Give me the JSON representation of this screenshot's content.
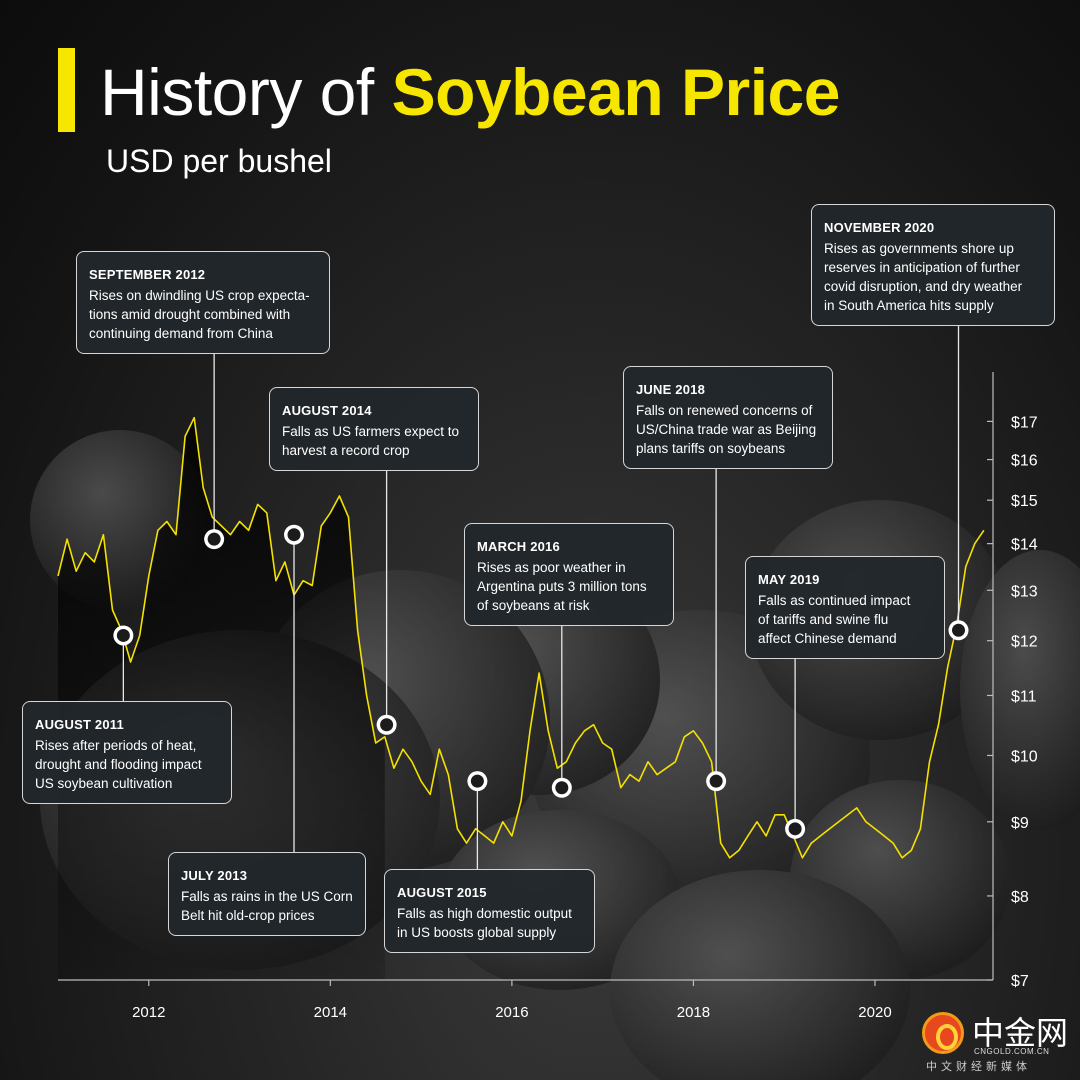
{
  "title": {
    "light": "History of",
    "bold": "Soybean Price"
  },
  "subtitle": "USD per bushel",
  "colors": {
    "accent": "#f7e600",
    "line": "#f5e100",
    "text": "#ffffff",
    "callout_bg": "#21272b",
    "callout_border": "#d6d6d6"
  },
  "chart_data": {
    "type": "line",
    "title": "History of Soybean Price",
    "subtitle": "USD per bushel",
    "xlabel": "",
    "ylabel": "",
    "y_scale": "log",
    "ylim": [
      7,
      17.7
    ],
    "xlim": [
      2011.0,
      2021.3
    ],
    "y_ticks": [
      7,
      8,
      9,
      10,
      11,
      12,
      13,
      14,
      15,
      16,
      17
    ],
    "y_tick_labels": [
      "$7",
      "$8",
      "$9",
      "$10",
      "$11",
      "$12",
      "$13",
      "$14",
      "$15",
      "$16",
      "$17"
    ],
    "x_ticks": [
      2012,
      2014,
      2016,
      2018,
      2020
    ],
    "x_tick_labels": [
      "2012",
      "2014",
      "2016",
      "2018",
      "2020"
    ],
    "grid": false,
    "legend": "none",
    "series": [
      {
        "name": "",
        "x": [
          2011.0,
          2011.1,
          2011.2,
          2011.3,
          2011.4,
          2011.5,
          2011.6,
          2011.7,
          2011.8,
          2011.9,
          2012.0,
          2012.1,
          2012.2,
          2012.3,
          2012.4,
          2012.5,
          2012.6,
          2012.7,
          2012.8,
          2012.9,
          2013.0,
          2013.1,
          2013.2,
          2013.3,
          2013.4,
          2013.5,
          2013.6,
          2013.7,
          2013.8,
          2013.9,
          2014.0,
          2014.1,
          2014.2,
          2014.3,
          2014.4,
          2014.5,
          2014.6,
          2014.7,
          2014.8,
          2014.9,
          2015.0,
          2015.1,
          2015.2,
          2015.3,
          2015.4,
          2015.5,
          2015.6,
          2015.7,
          2015.8,
          2015.9,
          2016.0,
          2016.1,
          2016.2,
          2016.3,
          2016.4,
          2016.5,
          2016.6,
          2016.7,
          2016.8,
          2016.9,
          2017.0,
          2017.1,
          2017.2,
          2017.3,
          2017.4,
          2017.5,
          2017.6,
          2017.7,
          2017.8,
          2017.9,
          2018.0,
          2018.1,
          2018.2,
          2018.3,
          2018.4,
          2018.5,
          2018.6,
          2018.7,
          2018.8,
          2018.9,
          2019.0,
          2019.1,
          2019.2,
          2019.3,
          2019.4,
          2019.5,
          2019.6,
          2019.7,
          2019.8,
          2019.9,
          2020.0,
          2020.1,
          2020.2,
          2020.3,
          2020.4,
          2020.5,
          2020.6,
          2020.7,
          2020.8,
          2020.9,
          2021.0,
          2021.1,
          2021.2
        ],
        "y": [
          13.3,
          14.1,
          13.4,
          13.8,
          13.6,
          14.2,
          12.6,
          12.2,
          11.6,
          12.1,
          13.3,
          14.3,
          14.5,
          14.2,
          16.6,
          17.1,
          15.3,
          14.6,
          14.4,
          14.2,
          14.5,
          14.3,
          14.9,
          14.7,
          13.2,
          13.6,
          12.9,
          13.2,
          13.1,
          14.4,
          14.7,
          15.1,
          14.6,
          12.2,
          11.0,
          10.2,
          10.3,
          9.8,
          10.1,
          9.9,
          9.6,
          9.4,
          10.1,
          9.7,
          8.9,
          8.7,
          8.9,
          8.8,
          8.7,
          9.0,
          8.8,
          9.3,
          10.4,
          11.4,
          10.4,
          9.8,
          9.9,
          10.2,
          10.4,
          10.5,
          10.2,
          10.1,
          9.5,
          9.7,
          9.6,
          9.9,
          9.7,
          9.8,
          9.9,
          10.3,
          10.4,
          10.2,
          9.9,
          8.7,
          8.5,
          8.6,
          8.8,
          9.0,
          8.8,
          9.1,
          9.1,
          8.8,
          8.5,
          8.7,
          8.8,
          8.9,
          9.0,
          9.1,
          9.2,
          9.0,
          8.9,
          8.8,
          8.7,
          8.5,
          8.6,
          8.9,
          9.9,
          10.5,
          11.5,
          12.3,
          13.5,
          14.0,
          14.3
        ]
      }
    ],
    "annotations": [
      {
        "date": "AUGUST 2011",
        "text": [
          "Rises after periods of heat,",
          "drought and flooding impact",
          "US soybean cultivation"
        ],
        "x": 2011.72,
        "y": 12.1
      },
      {
        "date": "SEPTEMBER 2012",
        "text": [
          "Rises on dwindling US crop expecta-",
          "tions amid drought combined with",
          "continuing demand from China"
        ],
        "x": 2012.72,
        "y": 14.1
      },
      {
        "date": "JULY 2013",
        "text": [
          "Falls as rains in the US Corn",
          "Belt hit old-crop prices"
        ],
        "x": 2013.6,
        "y": 14.2
      },
      {
        "date": "AUGUST 2014",
        "text": [
          "Falls as US farmers expect to",
          "harvest a record crop"
        ],
        "x": 2014.62,
        "y": 10.5
      },
      {
        "date": "AUGUST 2015",
        "text": [
          "Falls as high domestic output",
          "in US boosts global supply"
        ],
        "x": 2015.62,
        "y": 9.6
      },
      {
        "date": "MARCH 2016",
        "text": [
          "Rises as poor weather in",
          "Argentina puts 3 million tons",
          "of soybeans at risk"
        ],
        "x": 2016.55,
        "y": 9.5
      },
      {
        "date": "JUNE 2018",
        "text": [
          "Falls on renewed concerns of",
          "US/China trade war as Beijing",
          "plans tariffs on soybeans"
        ],
        "x": 2018.25,
        "y": 9.6
      },
      {
        "date": "MAY 2019",
        "text": [
          "Falls as continued impact",
          "of tariffs and swine flu",
          "affect Chinese demand"
        ],
        "x": 2019.12,
        "y": 8.9
      },
      {
        "date": "NOVEMBER 2020",
        "text": [
          "Rises as governments shore up",
          "reserves in anticipation of further",
          "covid disruption, and dry weather",
          "in South America hits supply"
        ],
        "x": 2020.92,
        "y": 12.2
      }
    ]
  },
  "logo": {
    "cn": "中金网",
    "en": "CNGOLD.COM.CN",
    "tag": "中文财经新媒体"
  }
}
